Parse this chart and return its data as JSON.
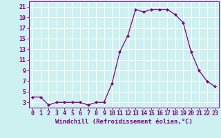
{
  "x": [
    0,
    1,
    2,
    3,
    4,
    5,
    6,
    7,
    8,
    9,
    10,
    11,
    12,
    13,
    14,
    15,
    16,
    17,
    18,
    19,
    20,
    21,
    22,
    23
  ],
  "y": [
    4.0,
    4.0,
    2.5,
    3.0,
    3.0,
    3.0,
    3.0,
    2.5,
    3.0,
    3.0,
    6.5,
    12.5,
    15.5,
    20.5,
    20.0,
    20.5,
    20.5,
    20.5,
    19.5,
    18.0,
    12.5,
    9.0,
    7.0,
    6.0
  ],
  "line_color": "#800080",
  "marker": "D",
  "marker_size": 2.0,
  "bg_color": "#cdf0f0",
  "grid_color": "#ffffff",
  "xlabel": "Windchill (Refroidissement éolien,°C)",
  "xlim": [
    -0.5,
    23.5
  ],
  "ylim": [
    2.0,
    22.0
  ],
  "xticks": [
    0,
    1,
    2,
    3,
    4,
    5,
    6,
    7,
    8,
    9,
    10,
    11,
    12,
    13,
    14,
    15,
    16,
    17,
    18,
    19,
    20,
    21,
    22,
    23
  ],
  "yticks": [
    3,
    5,
    7,
    9,
    11,
    13,
    15,
    17,
    19,
    21
  ],
  "tick_fontsize": 6.0,
  "xlabel_fontsize": 6.5,
  "spine_color": "#800080",
  "line_width": 0.9
}
